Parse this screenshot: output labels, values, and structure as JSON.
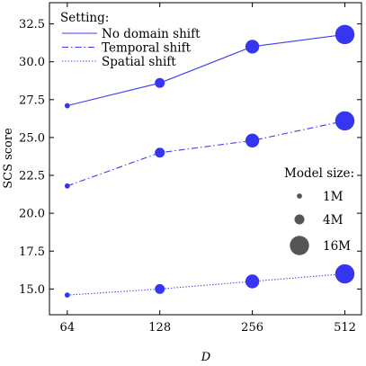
{
  "chart_data": {
    "type": "line",
    "xlabel": "D",
    "ylabel": "SCS score",
    "x_scale": "log2",
    "xlim": [
      56,
      580
    ],
    "ylim": [
      13.3,
      33.9
    ],
    "categories": [
      "64",
      "128",
      "256",
      "512"
    ],
    "x": [
      64,
      128,
      256,
      512
    ],
    "yticks": [
      "15.0",
      "17.5",
      "20.0",
      "22.5",
      "25.0",
      "27.5",
      "30.0",
      "32.5"
    ],
    "ytick_values": [
      15.0,
      17.5,
      20.0,
      22.5,
      25.0,
      27.5,
      30.0,
      32.5
    ],
    "grid": false,
    "legend_title": "Setting:",
    "legend_placement": "top-left",
    "marker_color": "#3535f2",
    "line_color": "#3c3cf0",
    "series": [
      {
        "name": "No domain shift",
        "dash": "solid",
        "values": [
          27.1,
          28.6,
          31.0,
          31.8
        ]
      },
      {
        "name": "Temporal shift",
        "dash": "dashdot",
        "values": [
          21.8,
          24.0,
          24.8,
          26.1
        ]
      },
      {
        "name": "Spatial shift",
        "dash": "dotted",
        "values": [
          14.6,
          15.0,
          15.5,
          16.0
        ]
      }
    ],
    "model_sizes_m": [
      1,
      4,
      8,
      16
    ],
    "size_legend": {
      "title": "Model size:",
      "placement": "center-right",
      "items": [
        {
          "label": "1M",
          "size_m": 1
        },
        {
          "label": "4M",
          "size_m": 4
        },
        {
          "label": "16M",
          "size_m": 16
        }
      ]
    }
  }
}
